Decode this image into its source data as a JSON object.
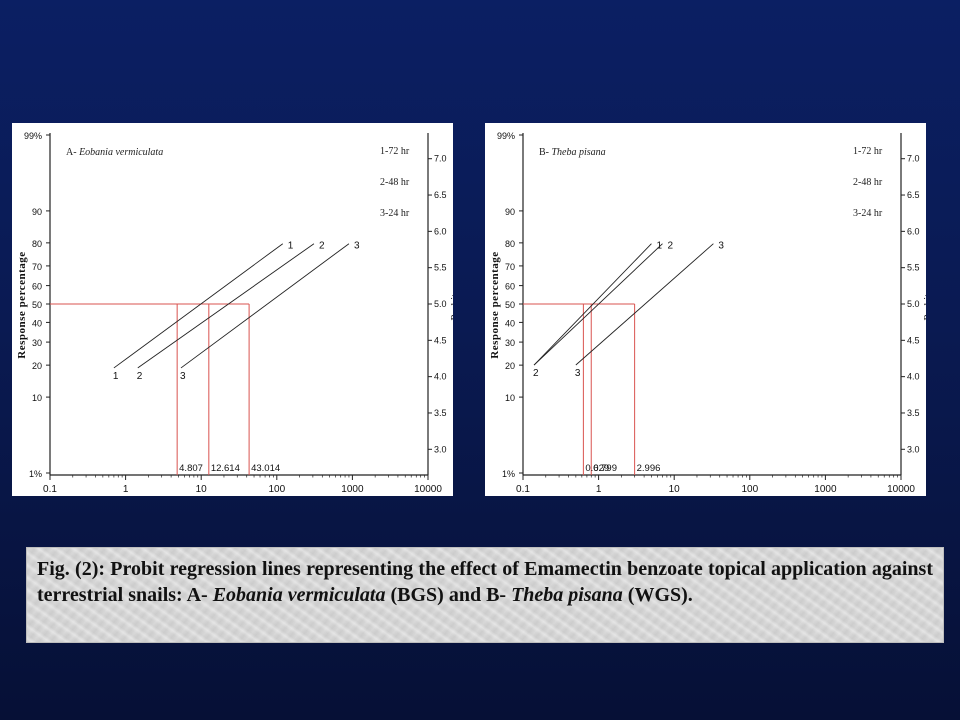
{
  "figure_caption": {
    "segments": [
      {
        "text": "Fig. (2): Probit regression lines representing the effect of Emamectin benzoate topical application against terrestrial snails: A- ",
        "italic": false
      },
      {
        "text": "Eobania vermiculata",
        "italic": true
      },
      {
        "text": " (BGS) and B- ",
        "italic": false
      },
      {
        "text": "Theba pisana",
        "italic": true
      },
      {
        "text": " (WGS).",
        "italic": false
      }
    ]
  },
  "colors": {
    "background": "#0a1a52",
    "panel": "#ffffff",
    "line": "#222222",
    "lc50_guide": "#d9534f",
    "caption_box": "#d9d9d9"
  },
  "chart_data": [
    {
      "type": "line",
      "panel_label_prefix": "A- ",
      "panel_label_species": "Eobania vermiculata",
      "ylabel_left": "Response percentage",
      "ylabel_right": "Probits",
      "x_scale": "log",
      "xlim": [
        0.1,
        10000
      ],
      "x_ticks": [
        "0.1",
        "1",
        "10",
        "100",
        "1000",
        "10000"
      ],
      "y_ticks_percent": [
        "1%",
        "10",
        "20",
        "30",
        "40",
        "50",
        "60",
        "70",
        "80",
        "90",
        "99%"
      ],
      "y_ticks_probit": [
        "3.0",
        "3.5",
        "4.0",
        "4.5",
        "5.0",
        "5.5",
        "6.0",
        "6.5",
        "7.0"
      ],
      "legend": [
        "1-72 hr",
        "2-48 hr",
        "3-24 hr"
      ],
      "series": [
        {
          "label": "1",
          "start": {
            "x": 0.7,
            "probit": 4.12
          },
          "end": {
            "x": 120,
            "probit": 5.83
          }
        },
        {
          "label": "2",
          "start": {
            "x": 1.45,
            "probit": 4.12
          },
          "end": {
            "x": 310,
            "probit": 5.83
          }
        },
        {
          "label": "3",
          "start": {
            "x": 5.4,
            "probit": 4.12
          },
          "end": {
            "x": 900,
            "probit": 5.83
          }
        }
      ],
      "lc50_values": [
        "4.807",
        "12.614",
        "43.014"
      ],
      "lc50_x": [
        4.807,
        12.614,
        43.014
      ],
      "guide_probit": 5.0
    },
    {
      "type": "line",
      "panel_label_prefix": "B- ",
      "panel_label_species": "Theba pisana",
      "ylabel_left": "Response percentage",
      "ylabel_right": "Probits",
      "x_scale": "log",
      "xlim": [
        0.1,
        10000
      ],
      "x_ticks": [
        "0.1",
        "1",
        "10",
        "100",
        "1000",
        "10000"
      ],
      "y_ticks_percent": [
        "1%",
        "10",
        "20",
        "30",
        "40",
        "50",
        "60",
        "70",
        "80",
        "90",
        "99%"
      ],
      "y_ticks_probit": [
        "3.0",
        "3.5",
        "4.0",
        "4.5",
        "5.0",
        "5.5",
        "6.0",
        "6.5",
        "7.0"
      ],
      "legend": [
        "1-72 hr",
        "2-48 hr",
        "3-24 hr"
      ],
      "series": [
        {
          "label": "1",
          "start": {
            "x": 0.14,
            "probit": 4.16
          },
          "end": {
            "x": 5.0,
            "probit": 5.83
          }
        },
        {
          "label": "2",
          "start": {
            "x": 0.14,
            "probit": 4.16
          },
          "end": {
            "x": 7.0,
            "probit": 5.83
          }
        },
        {
          "label": "3",
          "start": {
            "x": 0.5,
            "probit": 4.16
          },
          "end": {
            "x": 33,
            "probit": 5.83
          }
        }
      ],
      "start_labels": [
        "2",
        "3"
      ],
      "lc50_values": [
        "0.629",
        "0.799",
        "2.996"
      ],
      "lc50_x": [
        0.629,
        0.799,
        2.996
      ],
      "guide_probit": 5.0
    }
  ]
}
